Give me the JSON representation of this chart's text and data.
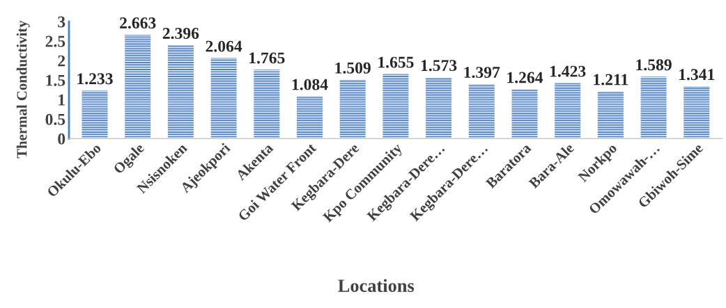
{
  "chart_data": {
    "type": "bar",
    "xlabel": "Locations",
    "ylabel": "Thermal Conductivity",
    "categories": [
      "Okulu-Ebo",
      "Ogale",
      "Nsisnoken",
      "Ajeokpori",
      "Akenta",
      "Goi Water Front",
      "Kegbara-Dere",
      "Kpo Community",
      "Kegbara-Dere…",
      "Kegbara-Dere…",
      "Baratora",
      "Bara-Ale",
      "Norkpo",
      "Omowawah-…",
      "Gbiwoh-Sime"
    ],
    "values": [
      1.233,
      2.663,
      2.396,
      2.064,
      1.765,
      1.084,
      1.509,
      1.655,
      1.573,
      1.397,
      1.264,
      1.423,
      1.211,
      1.589,
      1.341
    ],
    "color": "#4a7ec4",
    "data_labels": true,
    "ylim": [
      0,
      3
    ],
    "yticks": [
      0,
      0.5,
      1,
      1.5,
      2,
      2.5,
      3
    ],
    "grid": false,
    "legend": false
  }
}
